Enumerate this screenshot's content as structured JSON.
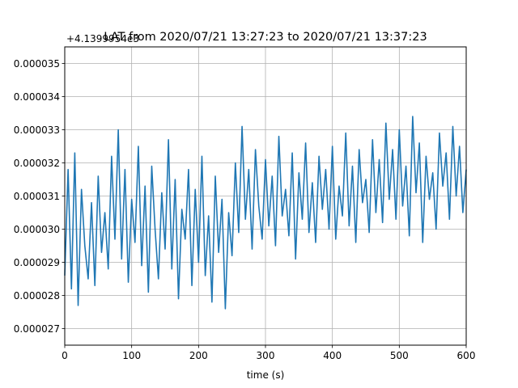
{
  "chart_data": {
    "type": "line",
    "title": "LAT from 2020/07/21 13:27:23 to 2020/07/21 13:37:23",
    "xlabel": "time (s)",
    "ylabel": "",
    "offset_text": "+4.1399954e3",
    "xlim": [
      0,
      600
    ],
    "ylim": [
      2.65e-05,
      3.55e-05
    ],
    "x_ticks": [
      0,
      100,
      200,
      300,
      400,
      500,
      600
    ],
    "x_tick_labels": [
      "0",
      "100",
      "200",
      "300",
      "400",
      "500",
      "600"
    ],
    "y_ticks": [
      2.7e-05,
      2.8e-05,
      2.9e-05,
      3e-05,
      3.1e-05,
      3.2e-05,
      3.3e-05,
      3.4e-05,
      3.5e-05
    ],
    "y_tick_labels": [
      "0.000027",
      "0.000028",
      "0.000029",
      "0.000030",
      "0.000031",
      "0.000032",
      "0.000033",
      "0.000034",
      "0.000035"
    ],
    "grid": true,
    "series": [
      {
        "color": "#1f77b4",
        "x": [
          0,
          5,
          10,
          15,
          20,
          25,
          30,
          35,
          40,
          45,
          50,
          55,
          60,
          65,
          70,
          75,
          80,
          85,
          90,
          95,
          100,
          105,
          110,
          115,
          120,
          125,
          130,
          135,
          140,
          145,
          150,
          155,
          160,
          165,
          170,
          175,
          180,
          185,
          190,
          195,
          200,
          205,
          210,
          215,
          220,
          225,
          230,
          235,
          240,
          245,
          250,
          255,
          260,
          265,
          270,
          275,
          280,
          285,
          290,
          295,
          300,
          305,
          310,
          315,
          320,
          325,
          330,
          335,
          340,
          345,
          350,
          355,
          360,
          365,
          370,
          375,
          380,
          385,
          390,
          395,
          400,
          405,
          410,
          415,
          420,
          425,
          430,
          435,
          440,
          445,
          450,
          455,
          460,
          465,
          470,
          475,
          480,
          485,
          490,
          495,
          500,
          505,
          510,
          515,
          520,
          525,
          530,
          535,
          540,
          545,
          550,
          555,
          560,
          565,
          570,
          575,
          580,
          585,
          590,
          595,
          600
        ],
        "values": [
          2.86e-05,
          3.18e-05,
          2.82e-05,
          3.23e-05,
          2.77e-05,
          3.12e-05,
          2.95e-05,
          2.85e-05,
          3.08e-05,
          2.83e-05,
          3.16e-05,
          2.93e-05,
          3.05e-05,
          2.88e-05,
          3.22e-05,
          2.97e-05,
          3.3e-05,
          2.91e-05,
          3.18e-05,
          2.84e-05,
          3.09e-05,
          2.96e-05,
          3.25e-05,
          2.89e-05,
          3.13e-05,
          2.81e-05,
          3.19e-05,
          3e-05,
          2.85e-05,
          3.11e-05,
          2.94e-05,
          3.27e-05,
          2.88e-05,
          3.15e-05,
          2.79e-05,
          3.06e-05,
          2.97e-05,
          3.18e-05,
          2.83e-05,
          3.12e-05,
          2.9e-05,
          3.22e-05,
          2.86e-05,
          3.04e-05,
          2.78e-05,
          3.16e-05,
          2.93e-05,
          3.09e-05,
          2.76e-05,
          3.05e-05,
          2.92e-05,
          3.2e-05,
          2.99e-05,
          3.31e-05,
          3.03e-05,
          3.18e-05,
          2.94e-05,
          3.24e-05,
          3.07e-05,
          2.97e-05,
          3.21e-05,
          3.01e-05,
          3.16e-05,
          2.95e-05,
          3.28e-05,
          3.04e-05,
          3.12e-05,
          2.98e-05,
          3.23e-05,
          2.91e-05,
          3.17e-05,
          3.03e-05,
          3.26e-05,
          2.99e-05,
          3.14e-05,
          2.96e-05,
          3.22e-05,
          3.06e-05,
          3.18e-05,
          3e-05,
          3.25e-05,
          2.97e-05,
          3.13e-05,
          3.04e-05,
          3.29e-05,
          3.01e-05,
          3.19e-05,
          2.96e-05,
          3.24e-05,
          3.08e-05,
          3.15e-05,
          2.99e-05,
          3.27e-05,
          3.05e-05,
          3.21e-05,
          3.02e-05,
          3.32e-05,
          3.09e-05,
          3.24e-05,
          3.03e-05,
          3.3e-05,
          3.07e-05,
          3.19e-05,
          2.98e-05,
          3.34e-05,
          3.11e-05,
          3.26e-05,
          2.96e-05,
          3.22e-05,
          3.09e-05,
          3.17e-05,
          3e-05,
          3.29e-05,
          3.13e-05,
          3.23e-05,
          3.03e-05,
          3.31e-05,
          3.1e-05,
          3.25e-05,
          3.05e-05,
          3.18e-05
        ]
      }
    ]
  }
}
